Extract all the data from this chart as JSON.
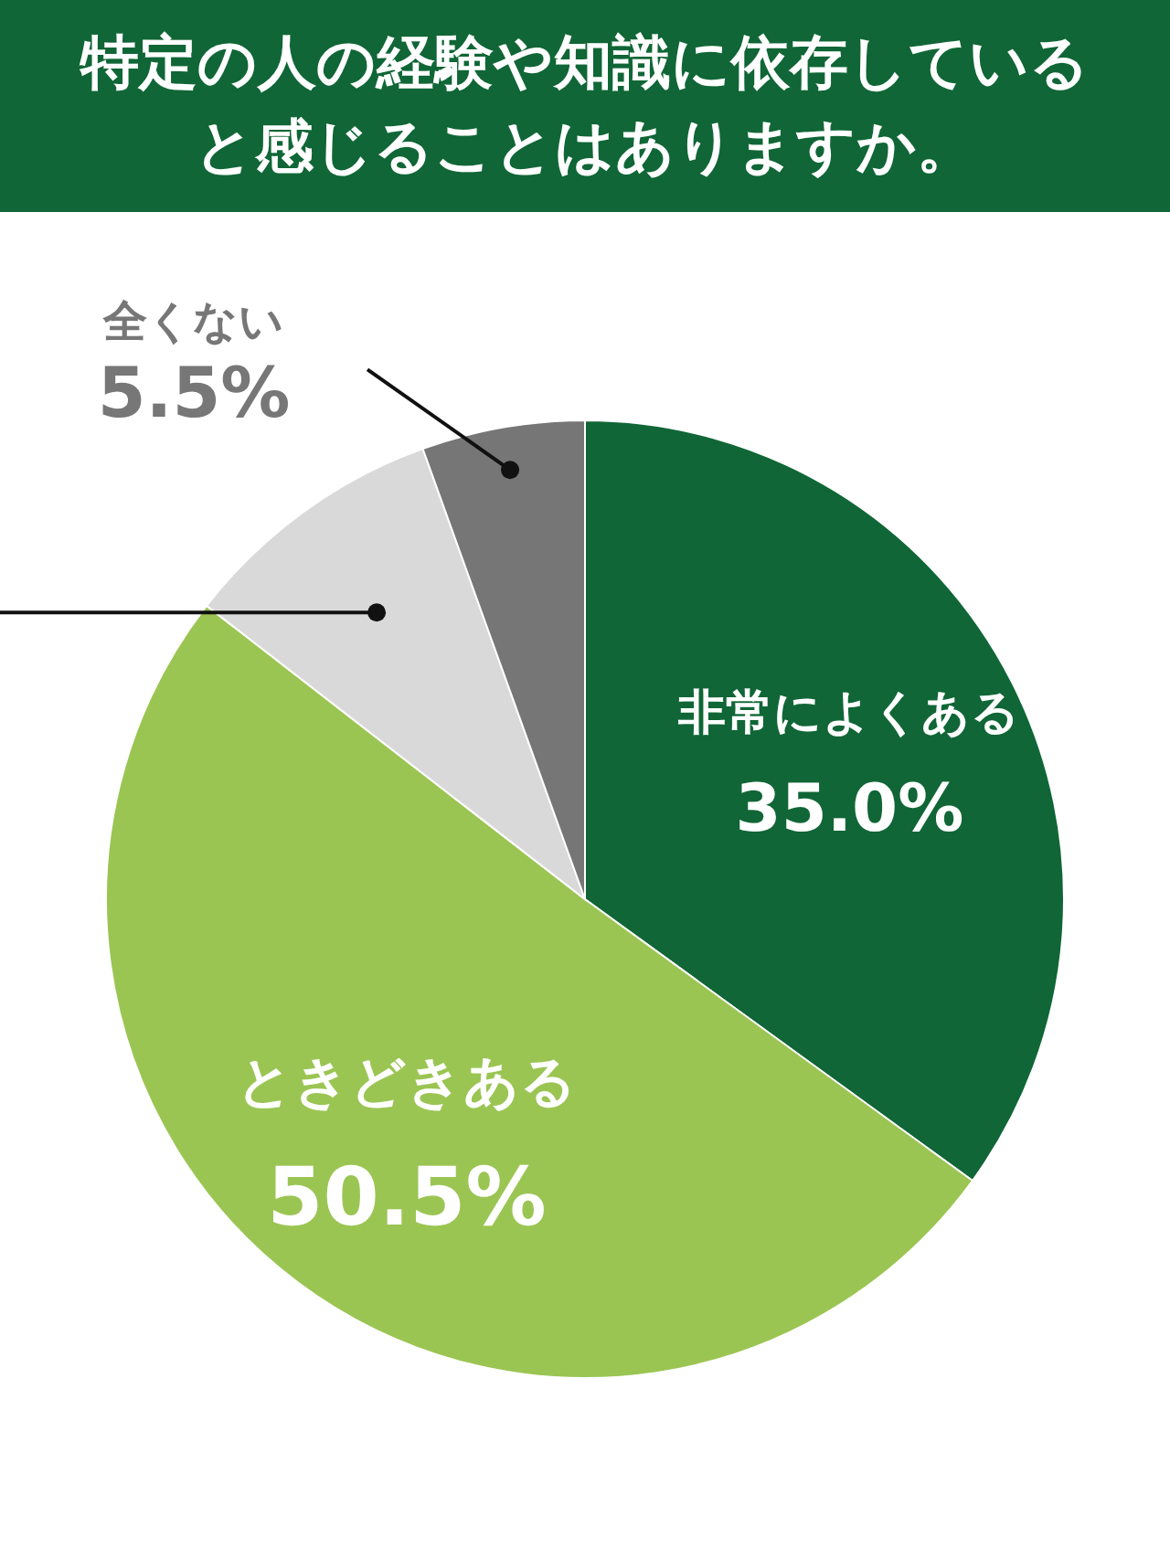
{
  "chart_data": {
    "type": "pie",
    "title": "特定の人の経験や知識に依存していると感じることはありますか。",
    "categories": [
      "非常によくある",
      "ときどきある",
      null,
      "全くない"
    ],
    "values": [
      35.0,
      50.5,
      9.0,
      5.5
    ],
    "colors": [
      "#106636",
      "#9bc553",
      "#d9d9d9",
      "#767676"
    ],
    "value_labels": [
      "35.0%",
      "50.5%",
      null,
      "5.5%"
    ]
  }
}
